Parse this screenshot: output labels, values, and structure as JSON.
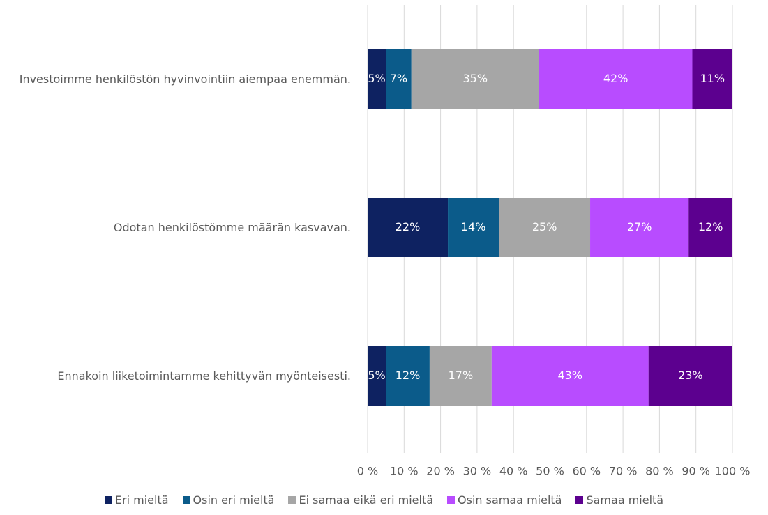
{
  "chart_data": {
    "type": "stacked_barh",
    "categories": [
      "Investoimme henkilöstön hyvinvointiin aiempaa enemmän.",
      "Odotan henkilöstömme määrän kasvavan.",
      "Ennakoin liiketoimintamme kehittyvän myönteisesti."
    ],
    "series": [
      {
        "name": "Eri mieltä",
        "color": "#0e2261",
        "values": [
          5,
          22,
          5
        ],
        "value_labels": [
          "5%",
          "22%",
          "5%"
        ]
      },
      {
        "name": "Osin eri mieltä",
        "color": "#0b5b8a",
        "values": [
          7,
          14,
          12
        ],
        "value_labels": [
          "7%",
          "14%",
          "12%"
        ]
      },
      {
        "name": "Ei samaa eikä eri mieltä",
        "color": "#a6a6a6",
        "values": [
          35,
          25,
          17
        ],
        "value_labels": [
          "35%",
          "25%",
          "17%"
        ]
      },
      {
        "name": "Osin samaa mieltä",
        "color": "#b84cff",
        "values": [
          42,
          27,
          43
        ],
        "value_labels": [
          "42%",
          "27%",
          "43%"
        ]
      },
      {
        "name": "Samaa mieltä",
        "color": "#5c008f",
        "values": [
          11,
          12,
          23
        ],
        "value_labels": [
          "11%",
          "12%",
          "23%"
        ]
      }
    ],
    "xlim": [
      0,
      100
    ],
    "xticks": [
      {
        "value": 0,
        "label": "0 %"
      },
      {
        "value": 10,
        "label": "10 %"
      },
      {
        "value": 20,
        "label": "20 %"
      },
      {
        "value": 30,
        "label": "30 %"
      },
      {
        "value": 40,
        "label": "40 %"
      },
      {
        "value": 50,
        "label": "50 %"
      },
      {
        "value": 60,
        "label": "60 %"
      },
      {
        "value": 70,
        "label": "70 %"
      },
      {
        "value": 80,
        "label": "80 %"
      },
      {
        "value": 90,
        "label": "90 %"
      },
      {
        "value": 100,
        "label": "100 %"
      }
    ],
    "grid": true,
    "legend": "bottom"
  }
}
